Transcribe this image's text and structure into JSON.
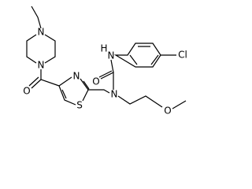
{
  "atoms": [
    {
      "label": "N"
    },
    {
      "label": "N"
    },
    {
      "label": "O"
    },
    {
      "label": "N"
    },
    {
      "label": "S"
    },
    {
      "label": "N"
    },
    {
      "label": "O"
    },
    {
      "label": "H"
    },
    {
      "label": "N"
    },
    {
      "label": "Cl"
    },
    {
      "label": "O"
    }
  ]
}
